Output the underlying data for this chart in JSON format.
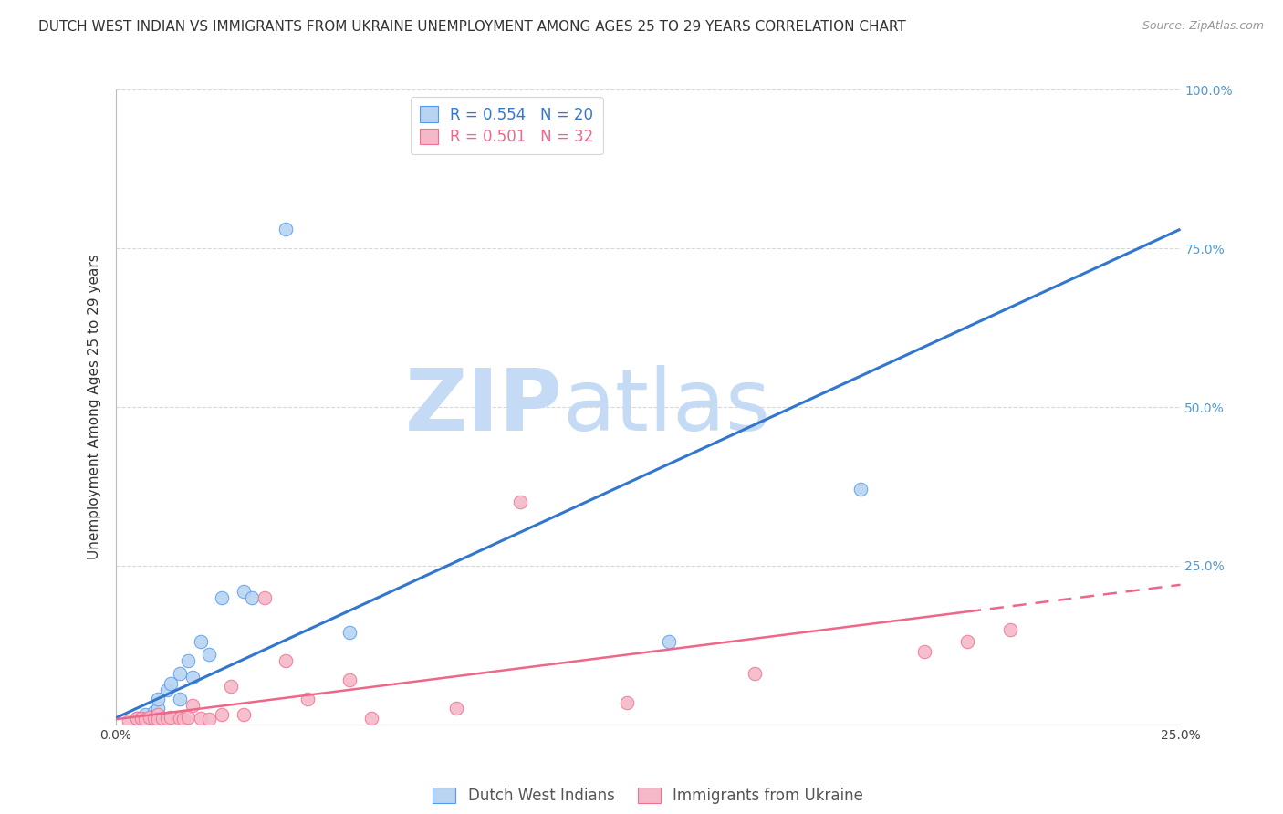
{
  "title": "DUTCH WEST INDIAN VS IMMIGRANTS FROM UKRAINE UNEMPLOYMENT AMONG AGES 25 TO 29 YEARS CORRELATION CHART",
  "source": "Source: ZipAtlas.com",
  "ylabel": "Unemployment Among Ages 25 to 29 years",
  "xlim": [
    0.0,
    0.25
  ],
  "ylim": [
    0.0,
    1.0
  ],
  "xticks": [
    0.0,
    0.05,
    0.1,
    0.15,
    0.2,
    0.25
  ],
  "yticks": [
    0.0,
    0.25,
    0.5,
    0.75,
    1.0
  ],
  "ytick_right_labels": [
    "",
    "25.0%",
    "50.0%",
    "75.0%",
    "100.0%"
  ],
  "xtick_labels": [
    "0.0%",
    "",
    "",
    "",
    "",
    "25.0%"
  ],
  "blue_R": "0.554",
  "blue_N": "20",
  "pink_R": "0.501",
  "pink_N": "32",
  "blue_label": "Dutch West Indians",
  "pink_label": "Immigrants from Ukraine",
  "blue_face_color": "#b8d4f0",
  "pink_face_color": "#f5b8c8",
  "blue_edge_color": "#5599ee",
  "pink_edge_color": "#f07090",
  "blue_line_color": "#3377cc",
  "pink_line_color": "#ee6688",
  "blue_scatter": [
    [
      0.005,
      0.01
    ],
    [
      0.007,
      0.015
    ],
    [
      0.009,
      0.02
    ],
    [
      0.01,
      0.025
    ],
    [
      0.01,
      0.04
    ],
    [
      0.012,
      0.055
    ],
    [
      0.013,
      0.065
    ],
    [
      0.015,
      0.08
    ],
    [
      0.015,
      0.04
    ],
    [
      0.017,
      0.1
    ],
    [
      0.018,
      0.075
    ],
    [
      0.02,
      0.13
    ],
    [
      0.022,
      0.11
    ],
    [
      0.025,
      0.2
    ],
    [
      0.03,
      0.21
    ],
    [
      0.032,
      0.2
    ],
    [
      0.04,
      0.78
    ],
    [
      0.055,
      0.145
    ],
    [
      0.175,
      0.37
    ],
    [
      0.13,
      0.13
    ]
  ],
  "pink_scatter": [
    [
      0.003,
      0.005
    ],
    [
      0.005,
      0.01
    ],
    [
      0.006,
      0.01
    ],
    [
      0.007,
      0.008
    ],
    [
      0.008,
      0.012
    ],
    [
      0.009,
      0.01
    ],
    [
      0.01,
      0.015
    ],
    [
      0.01,
      0.008
    ],
    [
      0.011,
      0.01
    ],
    [
      0.012,
      0.01
    ],
    [
      0.013,
      0.012
    ],
    [
      0.015,
      0.01
    ],
    [
      0.016,
      0.008
    ],
    [
      0.017,
      0.012
    ],
    [
      0.018,
      0.03
    ],
    [
      0.02,
      0.01
    ],
    [
      0.022,
      0.008
    ],
    [
      0.025,
      0.015
    ],
    [
      0.027,
      0.06
    ],
    [
      0.03,
      0.015
    ],
    [
      0.035,
      0.2
    ],
    [
      0.04,
      0.1
    ],
    [
      0.045,
      0.04
    ],
    [
      0.055,
      0.07
    ],
    [
      0.06,
      0.01
    ],
    [
      0.08,
      0.025
    ],
    [
      0.095,
      0.35
    ],
    [
      0.12,
      0.035
    ],
    [
      0.15,
      0.08
    ],
    [
      0.19,
      0.115
    ],
    [
      0.2,
      0.13
    ],
    [
      0.21,
      0.15
    ]
  ],
  "blue_trend_x": [
    0.0,
    0.25
  ],
  "blue_trend_y": [
    0.01,
    0.78
  ],
  "pink_trend_x": [
    0.0,
    0.25
  ],
  "pink_trend_y": [
    0.008,
    0.22
  ],
  "watermark_zip": "ZIP",
  "watermark_atlas": "atlas",
  "watermark_color": "#c5daf5",
  "title_fontsize": 11,
  "source_fontsize": 9,
  "legend_fontsize": 12,
  "ylabel_fontsize": 11,
  "tick_fontsize": 10,
  "bg_color": "#ffffff",
  "grid_color": "#d8d8d8",
  "axis_color": "#bbbbbb",
  "right_tick_color": "#5599cc"
}
